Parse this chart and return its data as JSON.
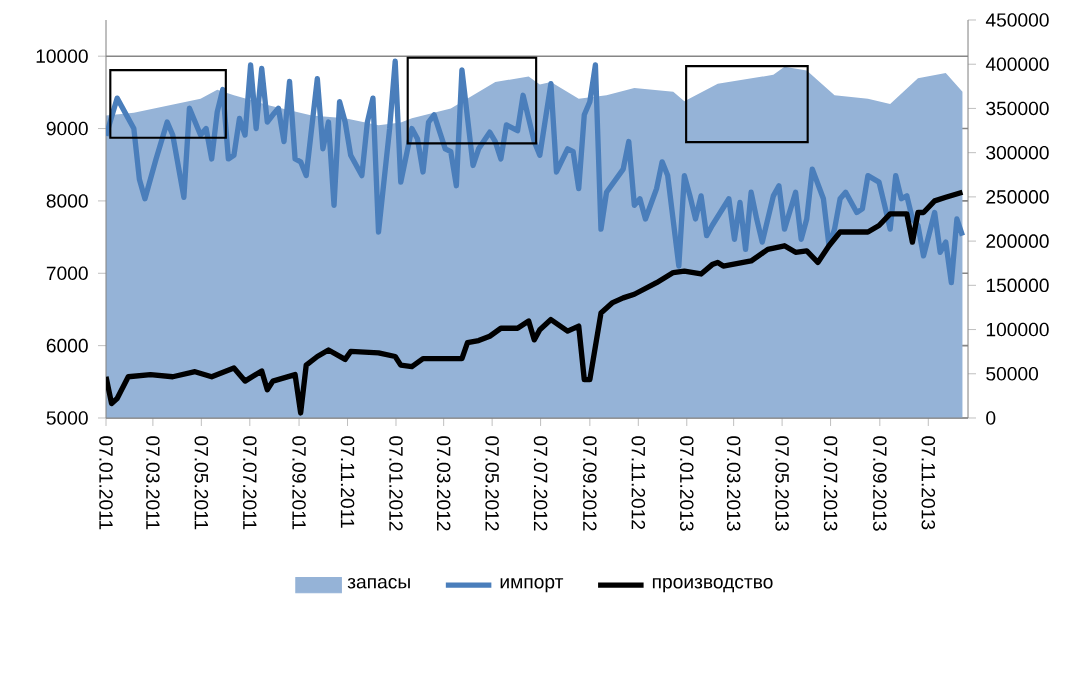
{
  "chart_data": {
    "type": "line",
    "xlim": [
      "2011-01-07",
      "2013-12-27"
    ],
    "xticks": [
      {
        "value": "2011-01-07",
        "label": "07.01.2011"
      },
      {
        "value": "2011-03-07",
        "label": "07.03.2011"
      },
      {
        "value": "2011-05-07",
        "label": "07.05.2011"
      },
      {
        "value": "2011-07-07",
        "label": "07.07.2011"
      },
      {
        "value": "2011-09-07",
        "label": "07.09.2011"
      },
      {
        "value": "2011-11-07",
        "label": "07.11.2011"
      },
      {
        "value": "2012-01-07",
        "label": "07.01.2012"
      },
      {
        "value": "2012-03-07",
        "label": "07.03.2012"
      },
      {
        "value": "2012-05-07",
        "label": "07.05.2012"
      },
      {
        "value": "2012-07-07",
        "label": "07.07.2012"
      },
      {
        "value": "2012-09-07",
        "label": "07.09.2012"
      },
      {
        "value": "2012-11-07",
        "label": "07.11.2012"
      },
      {
        "value": "2013-01-07",
        "label": "07.01.2013"
      },
      {
        "value": "2013-03-07",
        "label": "07.03.2013"
      },
      {
        "value": "2013-05-07",
        "label": "07.05.2013"
      },
      {
        "value": "2013-07-07",
        "label": "07.07.2013"
      },
      {
        "value": "2013-09-07",
        "label": "07.09.2013"
      },
      {
        "value": "2013-11-07",
        "label": "07.11.2013"
      }
    ],
    "ylim": [
      5000,
      10500
    ],
    "yticks": [
      5000,
      6000,
      7000,
      8000,
      9000,
      10000
    ],
    "y2lim": [
      0,
      450000
    ],
    "y2ticks": [
      0,
      50000,
      100000,
      150000,
      200000,
      250000,
      300000,
      350000,
      400000,
      450000
    ],
    "grid": "y",
    "legend": "bottom",
    "marker": "none",
    "series": [
      {
        "name": "запасы",
        "type": "area",
        "axis": "y2",
        "color": "#95b3d7",
        "x": [
          "2011-01-07",
          "2011-02-11",
          "2011-05-06",
          "2011-05-27",
          "2011-06-17",
          "2011-07-29",
          "2011-09-23",
          "2011-11-04",
          "2011-12-16",
          "2012-01-13",
          "2012-01-27",
          "2012-03-16",
          "2012-05-11",
          "2012-06-22",
          "2012-07-06",
          "2012-07-20",
          "2012-08-24",
          "2012-09-28",
          "2012-11-02",
          "2012-12-21",
          "2013-01-04",
          "2013-02-15",
          "2013-04-26",
          "2013-05-10",
          "2013-06-07",
          "2013-07-12",
          "2013-08-23",
          "2013-09-20",
          "2013-10-25",
          "2013-11-29",
          "2013-12-20"
        ],
        "values": [
          342000,
          345000,
          361000,
          371000,
          365000,
          354000,
          342000,
          339000,
          331000,
          334000,
          339000,
          350000,
          380000,
          386000,
          377000,
          380000,
          361000,
          365000,
          373000,
          369000,
          358000,
          378000,
          388000,
          397000,
          393000,
          365000,
          361000,
          355000,
          384000,
          390000,
          369000
        ]
      },
      {
        "name": "импорт",
        "color": "#4a7ebb",
        "x": [
          "2011-01-07",
          "2011-01-21",
          "2011-02-04",
          "2011-02-11",
          "2011-02-18",
          "2011-02-25",
          "2011-03-11",
          "2011-03-25",
          "2011-04-01",
          "2011-04-15",
          "2011-04-22",
          "2011-05-06",
          "2011-05-13",
          "2011-05-20",
          "2011-05-27",
          "2011-06-03",
          "2011-06-10",
          "2011-06-17",
          "2011-06-24",
          "2011-07-01",
          "2011-07-08",
          "2011-07-15",
          "2011-07-22",
          "2011-07-29",
          "2011-08-05",
          "2011-08-12",
          "2011-08-19",
          "2011-08-26",
          "2011-09-02",
          "2011-09-09",
          "2011-09-16",
          "2011-09-30",
          "2011-10-07",
          "2011-10-14",
          "2011-10-21",
          "2011-10-28",
          "2011-11-04",
          "2011-11-11",
          "2011-11-25",
          "2011-12-02",
          "2011-12-09",
          "2011-12-16",
          "2011-12-30",
          "2012-01-06",
          "2012-01-13",
          "2012-01-27",
          "2012-02-03",
          "2012-02-10",
          "2012-02-17",
          "2012-02-24",
          "2012-03-09",
          "2012-03-16",
          "2012-03-23",
          "2012-03-30",
          "2012-04-13",
          "2012-04-20",
          "2012-05-04",
          "2012-05-11",
          "2012-05-18",
          "2012-05-25",
          "2012-06-08",
          "2012-06-15",
          "2012-06-29",
          "2012-07-06",
          "2012-07-20",
          "2012-07-27",
          "2012-08-10",
          "2012-08-17",
          "2012-08-24",
          "2012-08-31",
          "2012-09-07",
          "2012-09-14",
          "2012-09-21",
          "2012-09-28",
          "2012-10-19",
          "2012-10-26",
          "2012-11-02",
          "2012-11-09",
          "2012-11-16",
          "2012-11-30",
          "2012-12-07",
          "2012-12-14",
          "2012-12-28",
          "2013-01-04",
          "2013-01-11",
          "2013-01-18",
          "2013-01-25",
          "2013-02-01",
          "2013-02-08",
          "2013-03-01",
          "2013-03-08",
          "2013-03-15",
          "2013-03-22",
          "2013-03-29",
          "2013-04-05",
          "2013-04-12",
          "2013-04-26",
          "2013-05-03",
          "2013-05-10",
          "2013-05-24",
          "2013-05-31",
          "2013-06-07",
          "2013-06-14",
          "2013-06-28",
          "2013-07-05",
          "2013-07-12",
          "2013-07-19",
          "2013-07-26",
          "2013-08-09",
          "2013-08-16",
          "2013-08-23",
          "2013-09-06",
          "2013-09-13",
          "2013-09-20",
          "2013-09-27",
          "2013-10-04",
          "2013-10-11",
          "2013-10-18",
          "2013-10-25",
          "2013-11-01",
          "2013-11-15",
          "2013-11-22",
          "2013-11-29",
          "2013-12-06",
          "2013-12-13",
          "2013-12-20"
        ],
        "values": [
          8900,
          9420,
          9140,
          9000,
          8300,
          8030,
          8580,
          9090,
          8910,
          8050,
          9280,
          8910,
          9000,
          8580,
          9230,
          9540,
          8580,
          8630,
          9140,
          8910,
          9880,
          9000,
          9830,
          9090,
          9190,
          9280,
          8820,
          9650,
          8580,
          8540,
          8350,
          9690,
          8720,
          9090,
          7940,
          9370,
          9090,
          8630,
          8350,
          9090,
          9420,
          7570,
          9000,
          9930,
          8260,
          9000,
          8860,
          8400,
          9090,
          9190,
          8720,
          8680,
          8210,
          9810,
          8490,
          8720,
          8950,
          8820,
          8580,
          9050,
          8970,
          9460,
          8820,
          8630,
          9620,
          8400,
          8720,
          8680,
          8170,
          9190,
          9370,
          9880,
          7610,
          8120,
          8440,
          8820,
          7940,
          8030,
          7750,
          8170,
          8540,
          8350,
          7100,
          8350,
          8070,
          7750,
          8070,
          7520,
          7660,
          8030,
          7470,
          7980,
          7330,
          8120,
          7750,
          7430,
          8070,
          8210,
          7610,
          8120,
          7470,
          7750,
          8440,
          8030,
          7380,
          7610,
          8030,
          8120,
          7840,
          7890,
          8350,
          8260,
          7940,
          7610,
          8350,
          8030,
          8070,
          7750,
          7660,
          7240,
          7840,
          7290,
          7430,
          6870,
          7750,
          7520
        ]
      },
      {
        "name": "производство",
        "color": "#000000",
        "x": [
          "2011-01-07",
          "2011-01-14",
          "2011-01-21",
          "2011-02-04",
          "2011-03-04",
          "2011-04-01",
          "2011-04-29",
          "2011-05-20",
          "2011-06-17",
          "2011-07-01",
          "2011-07-22",
          "2011-07-29",
          "2011-08-05",
          "2011-09-02",
          "2011-09-09",
          "2011-09-16",
          "2011-09-30",
          "2011-10-14",
          "2011-11-04",
          "2011-11-11",
          "2011-12-16",
          "2012-01-06",
          "2012-01-13",
          "2012-01-27",
          "2012-02-10",
          "2012-03-30",
          "2012-04-06",
          "2012-04-20",
          "2012-05-04",
          "2012-05-18",
          "2012-06-08",
          "2012-06-22",
          "2012-06-29",
          "2012-07-06",
          "2012-07-20",
          "2012-08-10",
          "2012-08-24",
          "2012-08-31",
          "2012-09-07",
          "2012-09-21",
          "2012-10-05",
          "2012-10-19",
          "2012-11-02",
          "2012-11-30",
          "2012-12-21",
          "2013-01-04",
          "2013-01-25",
          "2013-02-08",
          "2013-02-15",
          "2013-02-22",
          "2013-03-29",
          "2013-04-19",
          "2013-05-10",
          "2013-05-24",
          "2013-06-07",
          "2013-06-21",
          "2013-07-05",
          "2013-07-19",
          "2013-08-23",
          "2013-09-06",
          "2013-09-20",
          "2013-10-11",
          "2013-10-18",
          "2013-10-25",
          "2013-11-01",
          "2013-11-15",
          "2013-11-29",
          "2013-12-20"
        ],
        "values": [
          5570,
          5200,
          5270,
          5570,
          5600,
          5570,
          5640,
          5570,
          5690,
          5510,
          5650,
          5390,
          5510,
          5600,
          5070,
          5730,
          5850,
          5940,
          5810,
          5920,
          5900,
          5850,
          5730,
          5710,
          5820,
          5820,
          6040,
          6070,
          6130,
          6240,
          6240,
          6340,
          6080,
          6220,
          6360,
          6200,
          6270,
          5530,
          5530,
          6450,
          6590,
          6660,
          6710,
          6870,
          7010,
          7030,
          6990,
          7120,
          7150,
          7100,
          7170,
          7330,
          7380,
          7290,
          7310,
          7150,
          7380,
          7570,
          7570,
          7660,
          7820,
          7820,
          7430,
          7840,
          7840,
          8000,
          8050,
          8120
        ]
      }
    ]
  }
}
